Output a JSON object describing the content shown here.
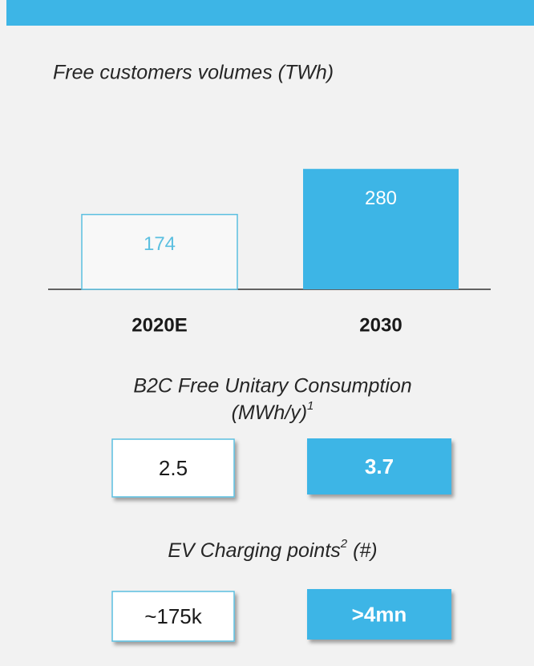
{
  "chart_data": {
    "type": "bar",
    "title": "Free customers volumes (TWh)",
    "categories": [
      "2020E",
      "2030"
    ],
    "values": [
      174,
      280
    ],
    "colors": [
      "#f8f8f8",
      "#3db5e6"
    ],
    "edge_color": "#5bbfe0",
    "label_colors": [
      "#5bbfe0",
      "#ffffff"
    ],
    "ylim": [
      0,
      300
    ]
  },
  "metrics": [
    {
      "title": "B2C Free Unitary Consumption",
      "unit": "(MWh/y)",
      "footnote": "1",
      "values": [
        2.5,
        3.7
      ]
    },
    {
      "title": "EV Charging points",
      "footnote": "2",
      "unit": " (#)",
      "values": [
        "~175k",
        ">4mn"
      ]
    }
  ]
}
